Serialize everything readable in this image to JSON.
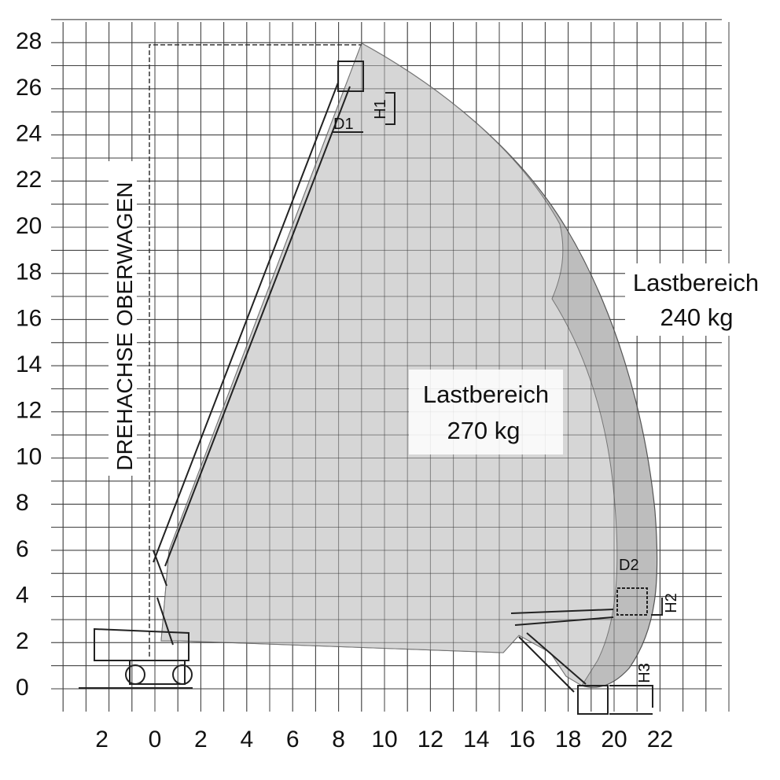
{
  "y_axis_labels": [
    "0",
    "2",
    "4",
    "6",
    "8",
    "10",
    "12",
    "14",
    "16",
    "18",
    "20",
    "22",
    "24",
    "26",
    "28"
  ],
  "x_axis_labels": [
    "2",
    "0",
    "2",
    "4",
    "6",
    "8",
    "10",
    "12",
    "14",
    "16",
    "18",
    "20",
    "22"
  ],
  "axis_title": "DREHACHSE OBERWAGEN",
  "zones": [
    {
      "label": "Lastbereich",
      "load": "270 kg"
    },
    {
      "label": "Lastbereich",
      "load": "240 kg"
    }
  ],
  "dimensions": [
    "D1",
    "H1",
    "D2",
    "H2",
    "H3"
  ]
}
